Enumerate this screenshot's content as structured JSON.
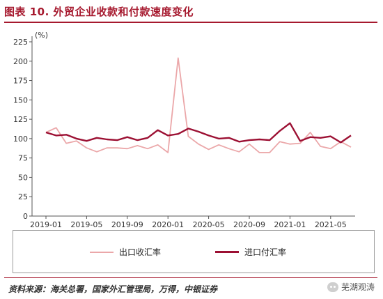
{
  "chart_data": {
    "type": "line",
    "title": "图表 10. 外贸企业收款和付款速度变化",
    "ylabel": "(%)",
    "ylim": [
      0,
      225
    ],
    "yticks": [
      0,
      25,
      50,
      75,
      100,
      125,
      150,
      175,
      200,
      225
    ],
    "x": [
      "2019-01",
      "2019-02",
      "2019-03",
      "2019-04",
      "2019-05",
      "2019-06",
      "2019-07",
      "2019-08",
      "2019-09",
      "2019-10",
      "2019-11",
      "2019-12",
      "2020-01",
      "2020-02",
      "2020-03",
      "2020-04",
      "2020-05",
      "2020-06",
      "2020-07",
      "2020-08",
      "2020-09",
      "2020-10",
      "2020-11",
      "2020-12",
      "2021-01",
      "2021-02",
      "2021-03",
      "2021-04",
      "2021-05",
      "2021-06",
      "2021-07"
    ],
    "xticks": [
      "2019-01",
      "2019-05",
      "2019-09",
      "2020-01",
      "2020-05",
      "2020-09",
      "2021-01",
      "2021-05"
    ],
    "legend_position": "bottom",
    "series": [
      {
        "name": "出口收汇率",
        "color": "#eba7a9",
        "values": [
          108,
          114,
          94,
          97,
          88,
          83,
          88,
          88,
          87,
          91,
          87,
          92,
          82,
          204,
          103,
          93,
          86,
          92,
          87,
          83,
          93,
          82,
          82,
          96,
          93,
          94,
          108,
          90,
          87,
          96,
          89
        ]
      },
      {
        "name": "进口付汇率",
        "color": "#9c1033",
        "values": [
          108,
          104,
          105,
          100,
          97,
          101,
          99,
          98,
          102,
          98,
          101,
          111,
          104,
          106,
          113,
          109,
          104,
          100,
          101,
          96,
          98,
          99,
          98,
          110,
          120,
          97,
          102,
          101,
          103,
          95,
          104
        ]
      }
    ]
  },
  "source": "资料来源：海关总署，国家外汇管理局，万得，中银证券",
  "watermark": "芜湖观涛"
}
